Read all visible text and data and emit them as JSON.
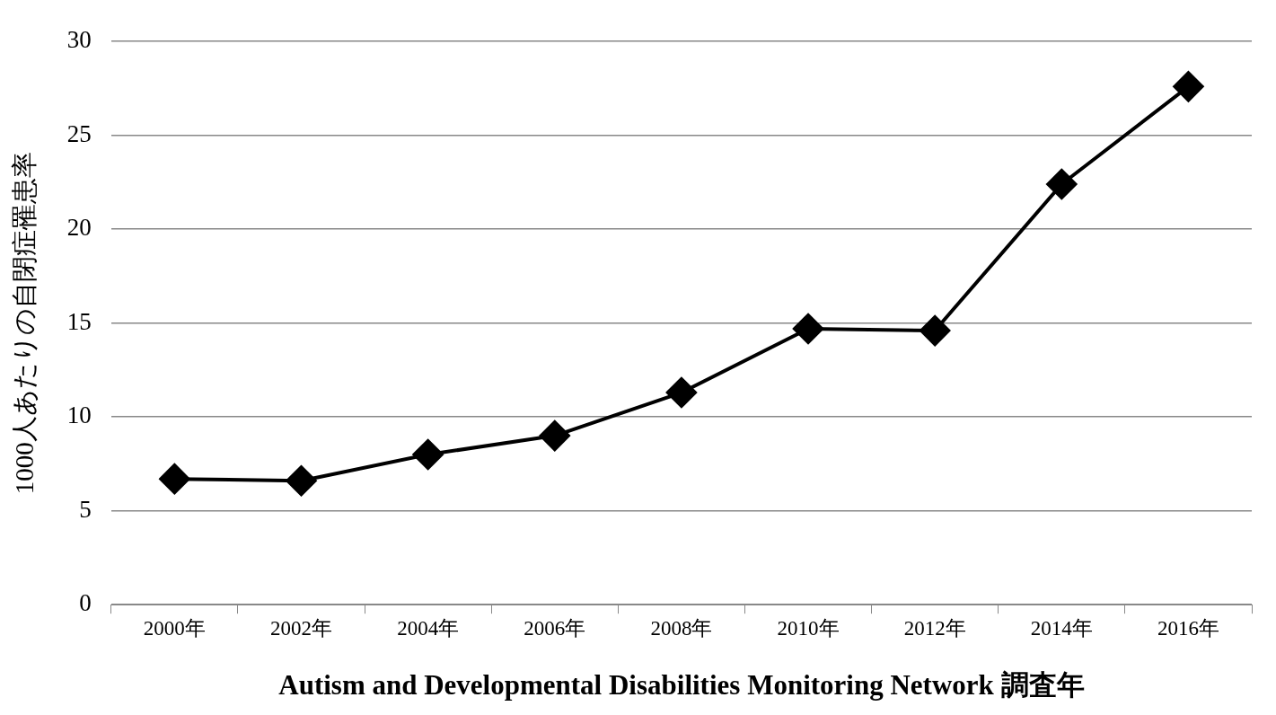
{
  "chart_data": {
    "type": "line",
    "xlabel": "Autism and Developmental Disabilities Monitoring Network 調査年",
    "ylabel": "1000人あたりの自閉症罹患率",
    "categories": [
      "2000年",
      "2002年",
      "2004年",
      "2006年",
      "2008年",
      "2010年",
      "2012年",
      "2014年",
      "2016年"
    ],
    "series": [
      {
        "color": "#000000",
        "values": [
          6.7,
          6.6,
          8.0,
          9.0,
          11.3,
          14.7,
          14.6,
          22.4,
          27.6
        ]
      }
    ],
    "ylim": [
      0,
      30
    ],
    "yticks": [
      0,
      5,
      10,
      15,
      20,
      25,
      30
    ],
    "grid": "y",
    "legend": false,
    "marker": "diamond",
    "line_style": "solid"
  }
}
